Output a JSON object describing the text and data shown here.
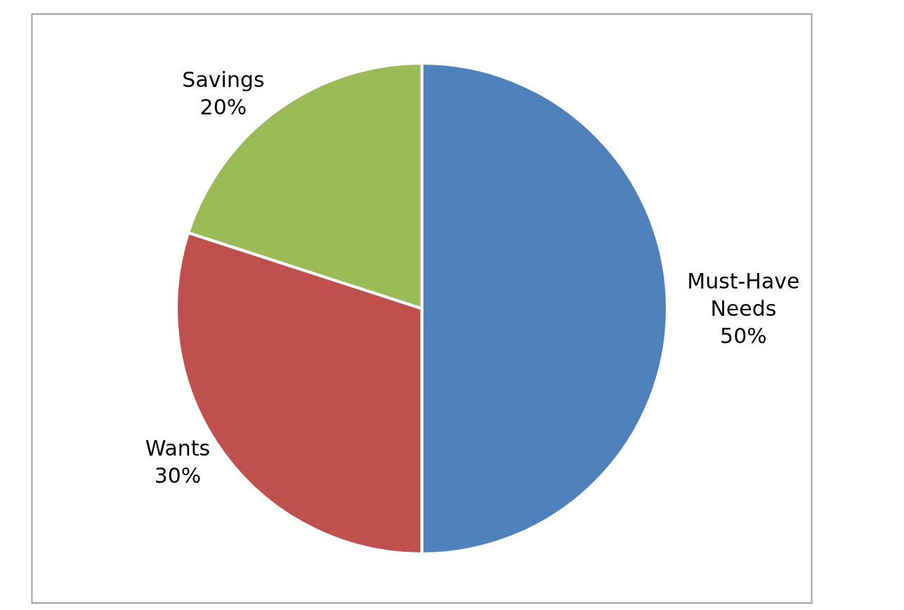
{
  "chart_data": {
    "type": "pie",
    "categories": [
      "Must-Have Needs",
      "Wants",
      "Savings"
    ],
    "values": [
      50,
      30,
      20
    ],
    "value_labels": [
      "50%",
      "30%",
      "20%"
    ],
    "colors": [
      "#4f81bd",
      "#c0504d",
      "#9bbb59"
    ],
    "legend": false
  }
}
